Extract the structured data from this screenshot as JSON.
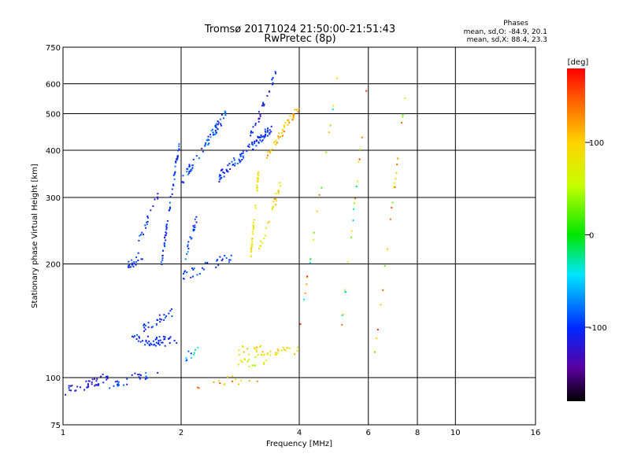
{
  "chart_data": {
    "type": "scatter",
    "title": "Tromsø 20171024 21:50:00-21:51:43",
    "subtitle": "RwPretec (8p)",
    "phase_box": {
      "title": "Phases",
      "line_o": "mean, sd,O: -84.9, 20.1",
      "line_x": "mean, sd,X:  88.4, 23.3"
    },
    "xlabel": "Frequency [MHz]",
    "ylabel": "Stationary phase Virtual Height [km]",
    "x_scale": "log",
    "y_scale": "log",
    "xlim": [
      1,
      16
    ],
    "ylim": [
      75,
      750
    ],
    "x_ticks": [
      1,
      2,
      4,
      6,
      8,
      10,
      16
    ],
    "x_tick_labels": [
      "1",
      "2",
      "4",
      "6",
      "8",
      "10",
      "16"
    ],
    "y_ticks": [
      75,
      100,
      200,
      300,
      400,
      500,
      600,
      750
    ],
    "y_tick_labels": [
      "75",
      "100",
      "200",
      "300",
      "400",
      "500",
      "600",
      "750"
    ],
    "grid_x": [
      2,
      4,
      6,
      8,
      10
    ],
    "grid_y": [
      100,
      200,
      300,
      400,
      500,
      600
    ],
    "colorbar": {
      "label": "[deg]",
      "range": [
        -180,
        180
      ],
      "ticks": [
        100,
        0,
        -100
      ],
      "tick_labels": [
        "100",
        "0",
        "-100"
      ]
    },
    "groups": [
      {
        "f1": 1.01,
        "f2": 1.3,
        "h1": 92,
        "h2": 100,
        "n": 40,
        "phase": -115,
        "spread": 25
      },
      {
        "f1": 1.3,
        "f2": 1.75,
        "h1": 96,
        "h2": 103,
        "n": 25,
        "phase": -105,
        "spread": 30
      },
      {
        "f1": 1.5,
        "f2": 1.95,
        "h1": 125,
        "h2": 125,
        "n": 45,
        "phase": -105,
        "spread": 15
      },
      {
        "f1": 1.5,
        "f2": 1.9,
        "h1": 130,
        "h2": 150,
        "n": 30,
        "phase": -100,
        "spread": 30
      },
      {
        "f1": 1.45,
        "f2": 1.62,
        "h1": 195,
        "h2": 215,
        "n": 20,
        "phase": -100,
        "spread": 20
      },
      {
        "f1": 1.55,
        "f2": 1.75,
        "h1": 225,
        "h2": 310,
        "n": 18,
        "phase": -95,
        "spread": 30
      },
      {
        "f1": 1.78,
        "f2": 1.98,
        "h1": 200,
        "h2": 420,
        "n": 60,
        "phase": -100,
        "spread": 25
      },
      {
        "f1": 2.0,
        "f2": 2.7,
        "h1": 185,
        "h2": 210,
        "n": 30,
        "phase": -95,
        "spread": 20
      },
      {
        "f1": 2.05,
        "f2": 2.2,
        "h1": 210,
        "h2": 270,
        "n": 20,
        "phase": -90,
        "spread": 40
      },
      {
        "f1": 2.0,
        "f2": 2.6,
        "h1": 330,
        "h2": 500,
        "n": 70,
        "phase": -95,
        "spread": 30
      },
      {
        "f1": 2.5,
        "f2": 3.4,
        "h1": 340,
        "h2": 460,
        "n": 90,
        "phase": -105,
        "spread": 25
      },
      {
        "f1": 3.0,
        "f2": 3.5,
        "h1": 430,
        "h2": 640,
        "n": 30,
        "phase": -110,
        "spread": 25
      },
      {
        "f1": 3.0,
        "f2": 3.15,
        "h1": 205,
        "h2": 350,
        "n": 40,
        "phase": 80,
        "spread": 25
      },
      {
        "f1": 3.15,
        "f2": 3.6,
        "h1": 215,
        "h2": 330,
        "n": 25,
        "phase": 90,
        "spread": 40
      },
      {
        "f1": 3.3,
        "f2": 4.0,
        "h1": 390,
        "h2": 520,
        "n": 45,
        "phase": 110,
        "spread": 30
      },
      {
        "f1": 2.8,
        "f2": 4.0,
        "h1": 118,
        "h2": 118,
        "n": 40,
        "phase": 90,
        "spread": 25
      },
      {
        "f1": 2.8,
        "f2": 3.3,
        "h1": 108,
        "h2": 112,
        "n": 15,
        "phase": 70,
        "spread": 30
      },
      {
        "f1": 2.2,
        "f2": 3.2,
        "h1": 96,
        "h2": 100,
        "n": 15,
        "phase": 120,
        "spread": 40
      },
      {
        "f1": 2.05,
        "f2": 2.3,
        "h1": 112,
        "h2": 125,
        "n": 10,
        "phase": -80,
        "spread": 60
      },
      {
        "f1": 4.0,
        "f2": 5.0,
        "h1": 130,
        "h2": 620,
        "n": 20,
        "phase": 60,
        "spread": 120
      },
      {
        "f1": 5.1,
        "f2": 6.0,
        "h1": 130,
        "h2": 640,
        "n": 20,
        "phase": 40,
        "spread": 130
      },
      {
        "f1": 6.2,
        "f2": 7.5,
        "h1": 110,
        "h2": 600,
        "n": 25,
        "phase": 100,
        "spread": 80
      }
    ]
  }
}
